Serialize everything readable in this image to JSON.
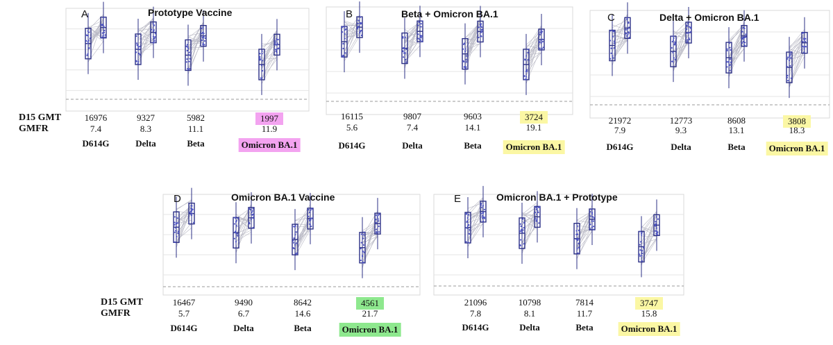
{
  "row_labels": {
    "gmt": "D15 GMT",
    "gmfr": "GMFR"
  },
  "colors": {
    "box": "#2b2f86",
    "dots": "#4b52c4",
    "lines": "#b8b8c4",
    "highlight_pink": "#f3a3f0",
    "highlight_yellow": "#fbf7a4",
    "highlight_green": "#8ee88e"
  },
  "chart_data": [
    {
      "type": "box",
      "letter": "A",
      "title": "Prototype Vaccine",
      "categories": [
        "D614G",
        "Delta",
        "Beta",
        "Omicron BA.1"
      ],
      "d15_gmt": [
        "16976",
        "9327",
        "5982",
        "1997"
      ],
      "gmfr": [
        "7.4",
        "8.3",
        "11.1",
        "11.9"
      ],
      "highlight": {
        "index": 3,
        "color": "pink"
      }
    },
    {
      "type": "box",
      "letter": "B",
      "title": "Beta + Omicron BA.1",
      "categories": [
        "D614G",
        "Delta",
        "Beta",
        "Omicron BA.1"
      ],
      "d15_gmt": [
        "16115",
        "9807",
        "9603",
        "3724"
      ],
      "gmfr": [
        "5.6",
        "7.4",
        "14.1",
        "19.1"
      ],
      "highlight": {
        "index": 3,
        "color": "yellow"
      }
    },
    {
      "type": "box",
      "letter": "C",
      "title": "Delta + Omicron BA.1",
      "categories": [
        "D614G",
        "Delta",
        "Beta",
        "Omicron BA.1"
      ],
      "d15_gmt": [
        "21972",
        "12773",
        "8608",
        "3808"
      ],
      "gmfr": [
        "7.9",
        "9.3",
        "13.1",
        "18.3"
      ],
      "highlight": {
        "index": 3,
        "color": "yellow"
      }
    },
    {
      "type": "box",
      "letter": "D",
      "title": "Omicron BA.1 Vaccine",
      "categories": [
        "D614G",
        "Delta",
        "Beta",
        "Omicron BA.1"
      ],
      "d15_gmt": [
        "16467",
        "9490",
        "8642",
        "4561"
      ],
      "gmfr": [
        "5.7",
        "6.7",
        "14.6",
        "21.7"
      ],
      "highlight": {
        "index": 3,
        "color": "green"
      }
    },
    {
      "type": "box",
      "letter": "E",
      "title": "Omicron BA.1 + Prototype",
      "categories": [
        "D614G",
        "Delta",
        "Beta",
        "Omicron BA.1"
      ],
      "d15_gmt": [
        "21096",
        "10798",
        "7814",
        "3747"
      ],
      "gmfr": [
        "7.8",
        "8.1",
        "11.7",
        "15.8"
      ],
      "highlight": {
        "index": 3,
        "color": "yellow"
      }
    }
  ]
}
